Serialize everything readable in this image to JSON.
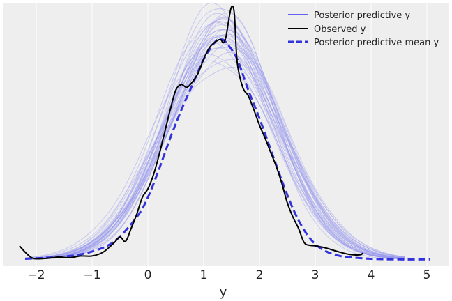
{
  "chart_data": {
    "type": "line",
    "xlabel": "y",
    "ylabel": "",
    "xlim": [
      -2.6,
      5.4
    ],
    "ylim": [
      -0.012,
      0.455
    ],
    "xticks": [
      -2,
      -1,
      0,
      1,
      2,
      3,
      4,
      5
    ],
    "xtick_labels": [
      "−2",
      "−1",
      "0",
      "1",
      "2",
      "3",
      "4",
      "5"
    ],
    "grid": true,
    "legend_placement": "top-right",
    "legend": [
      {
        "label": "Posterior predictive y",
        "style": "solid-thin",
        "color": "#3333ee"
      },
      {
        "label": "Observed y",
        "style": "solid",
        "color": "#000000"
      },
      {
        "label": "Posterior predictive mean y",
        "style": "dashed",
        "color": "#3333dd"
      }
    ],
    "colors": {
      "background": "#eeeeee",
      "grid": "#ffffff",
      "observed": "#000000",
      "posterior_mean": "#3333dd",
      "posterior_samples": "#9999ee"
    },
    "series": [
      {
        "name": "Observed y",
        "role": "observed",
        "x": [
          -2.3,
          -2.2,
          -2.1,
          -2.0,
          -1.8,
          -1.6,
          -1.4,
          -1.2,
          -1.0,
          -0.8,
          -0.6,
          -0.5,
          -0.4,
          -0.3,
          -0.2,
          -0.1,
          0.0,
          0.1,
          0.2,
          0.3,
          0.4,
          0.5,
          0.6,
          0.7,
          0.8,
          0.9,
          1.0,
          1.1,
          1.2,
          1.3,
          1.35,
          1.4,
          1.45,
          1.5,
          1.55,
          1.6,
          1.7,
          1.8,
          1.9,
          2.0,
          2.1,
          2.2,
          2.3,
          2.4,
          2.5,
          2.6,
          2.7,
          2.8,
          2.9,
          3.0,
          3.2,
          3.4,
          3.6,
          3.8,
          3.85
        ],
        "y": [
          0.024,
          0.013,
          0.004,
          0.001,
          0.002,
          0.004,
          0.003,
          0.006,
          0.006,
          0.013,
          0.03,
          0.04,
          0.032,
          0.055,
          0.08,
          0.11,
          0.125,
          0.15,
          0.185,
          0.225,
          0.265,
          0.3,
          0.31,
          0.305,
          0.315,
          0.33,
          0.355,
          0.375,
          0.385,
          0.39,
          0.384,
          0.395,
          0.425,
          0.448,
          0.435,
          0.35,
          0.305,
          0.29,
          0.265,
          0.238,
          0.215,
          0.19,
          0.165,
          0.135,
          0.1,
          0.075,
          0.055,
          0.03,
          0.025,
          0.024,
          0.02,
          0.014,
          0.009,
          0.008,
          0.011
        ]
      },
      {
        "name": "Posterior predictive mean y",
        "role": "mean",
        "x": [
          -2.2,
          -1.8,
          -1.4,
          -1.0,
          -0.6,
          -0.2,
          0.0,
          0.2,
          0.4,
          0.6,
          0.8,
          1.0,
          1.2,
          1.3,
          1.4,
          1.6,
          1.8,
          2.0,
          2.2,
          2.4,
          2.6,
          2.8,
          3.0,
          3.2,
          3.4,
          3.6,
          4.0,
          4.5,
          5.05
        ],
        "y": [
          0.001,
          0.003,
          0.006,
          0.014,
          0.032,
          0.075,
          0.11,
          0.16,
          0.215,
          0.265,
          0.31,
          0.355,
          0.385,
          0.39,
          0.385,
          0.355,
          0.3,
          0.25,
          0.195,
          0.14,
          0.09,
          0.052,
          0.027,
          0.014,
          0.007,
          0.004,
          0.001,
          0.0,
          0.0
        ]
      }
    ],
    "posterior_samples": {
      "count": 30,
      "description": "light semi-transparent blue sample KDE curves around the mean",
      "x_range": [
        -2.2,
        4.6
      ]
    }
  }
}
